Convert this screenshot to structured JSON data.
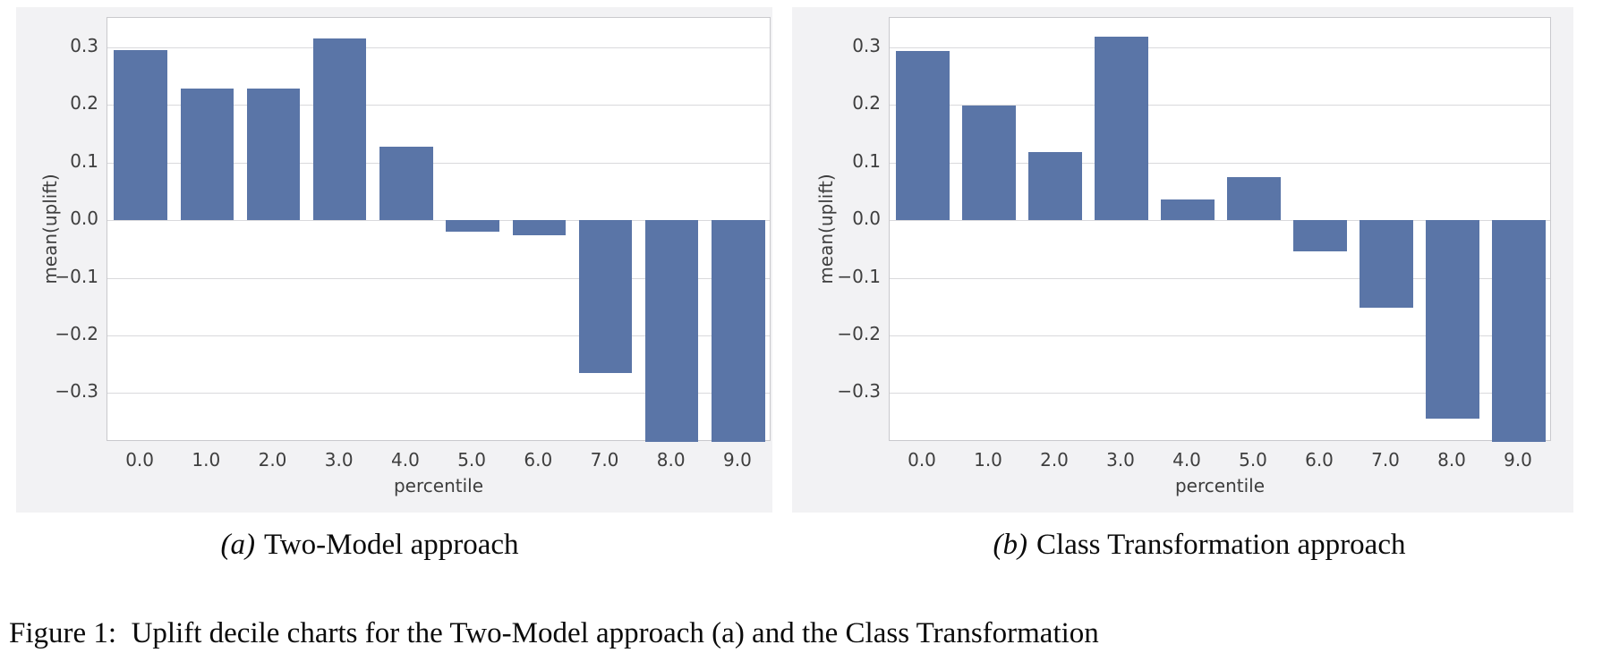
{
  "figure": {
    "captions": {
      "a": {
        "label": "(a)",
        "text": "Two-Model approach"
      },
      "b": {
        "label": "(b)",
        "text": "Class Transformation approach"
      },
      "figure_line": "Figure 1:  Uplift decile charts for the Two-Model approach (a) and the Class Transformation"
    }
  },
  "colors": {
    "bar": "#5a75a7",
    "gridline": "#d9d9dc",
    "plot_border": "#c9c9cd",
    "panel_background": "#f2f2f4",
    "chart_text": "#3e3e3e",
    "caption_text": "#0b0b0b"
  },
  "chart_data": [
    {
      "type": "bar",
      "title": "(a) Two-Model approach",
      "xlabel": "percentile",
      "ylabel": "mean(uplift)",
      "categories": [
        "0.0",
        "1.0",
        "2.0",
        "3.0",
        "4.0",
        "5.0",
        "6.0",
        "7.0",
        "8.0",
        "9.0"
      ],
      "values": [
        0.295,
        0.229,
        0.228,
        0.315,
        0.127,
        -0.02,
        -0.026,
        -0.266,
        -0.39,
        -0.39
      ],
      "clipped_below_axis": [
        "8.0",
        "9.0"
      ],
      "ylim": [
        -0.385,
        0.351
      ],
      "yticks": [
        0.3,
        0.2,
        0.1,
        0.0,
        -0.1,
        -0.2,
        -0.3
      ],
      "ytick_labels": [
        "0.3",
        "0.2",
        "0.1",
        "0.0",
        "−0.1",
        "−0.2",
        "−0.3"
      ],
      "grid": true,
      "legend": "none",
      "bar_color": "#5a75a7",
      "bar_rel_width": 0.8
    },
    {
      "type": "bar",
      "title": "(b) Class Transformation approach",
      "xlabel": "percentile",
      "ylabel": "mean(uplift)",
      "categories": [
        "0.0",
        "1.0",
        "2.0",
        "3.0",
        "4.0",
        "5.0",
        "6.0",
        "7.0",
        "8.0",
        "9.0"
      ],
      "values": [
        0.294,
        0.199,
        0.118,
        0.318,
        0.036,
        0.075,
        -0.054,
        -0.152,
        -0.345,
        -0.39
      ],
      "clipped_below_axis": [
        "9.0"
      ],
      "ylim": [
        -0.385,
        0.351
      ],
      "yticks": [
        0.3,
        0.2,
        0.1,
        0.0,
        -0.1,
        -0.2,
        -0.3
      ],
      "ytick_labels": [
        "0.3",
        "0.2",
        "0.1",
        "0.0",
        "−0.1",
        "−0.2",
        "−0.3"
      ],
      "grid": true,
      "legend": "none",
      "bar_color": "#5a75a7",
      "bar_rel_width": 0.8
    }
  ]
}
